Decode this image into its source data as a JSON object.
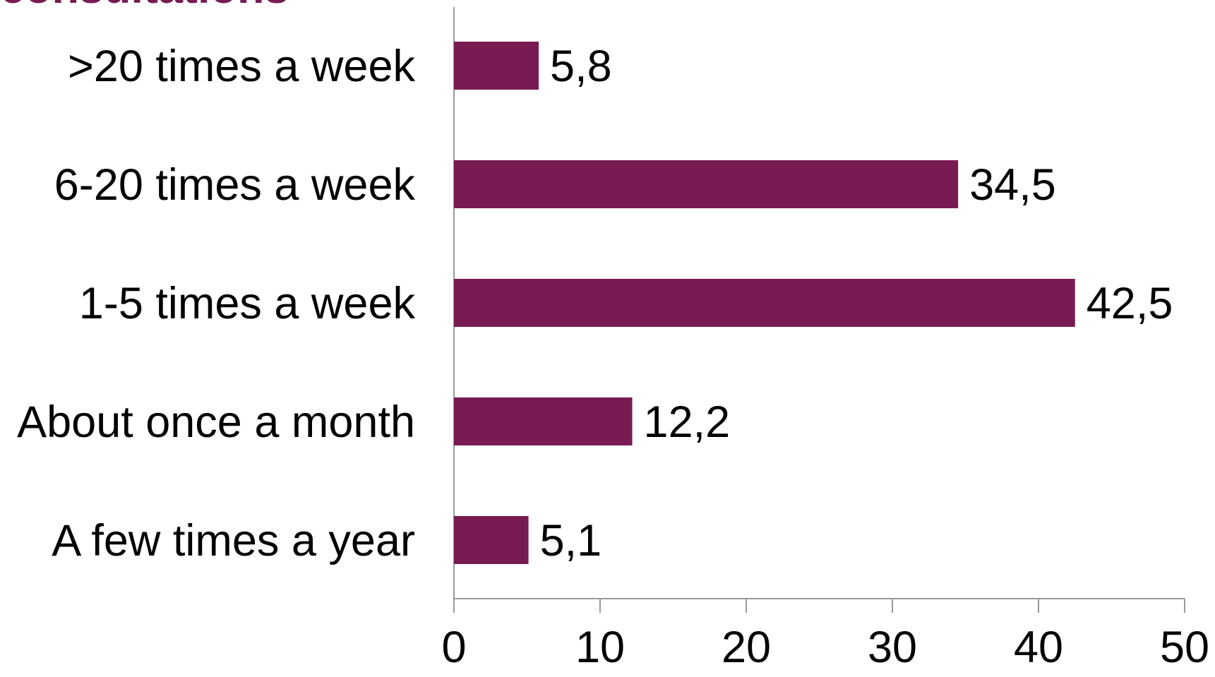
{
  "chart_data": {
    "type": "hbar",
    "title": "consultations",
    "categories": [
      ">20 times a week",
      "6-20 times a week",
      "1-5 times a week",
      "About once a month",
      "A few times a year"
    ],
    "values": [
      5.8,
      34.5,
      42.5,
      12.2,
      5.1
    ],
    "value_labels": [
      "5,8",
      "34,5",
      "42,5",
      "12,2",
      "5,1"
    ],
    "color": "#771b52",
    "xlim": [
      0,
      50
    ],
    "xticks": [
      0,
      10,
      20,
      30,
      40,
      50
    ],
    "grid": false
  }
}
